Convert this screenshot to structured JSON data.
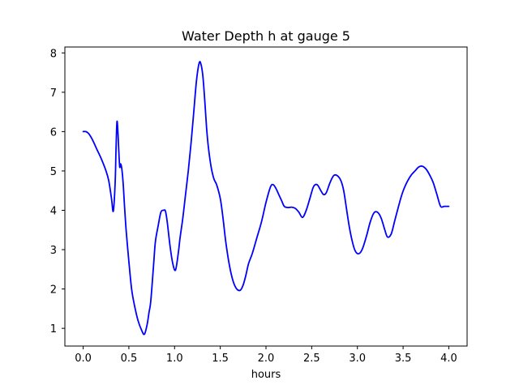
{
  "chart_data": {
    "type": "line",
    "title": "Water Depth h at gauge 5",
    "xlabel": "hours",
    "ylabel": "",
    "xlim": [
      -0.2,
      4.2
    ],
    "ylim": [
      0.55,
      8.15
    ],
    "xticks": [
      0.0,
      0.5,
      1.0,
      1.5,
      2.0,
      2.5,
      3.0,
      3.5,
      4.0
    ],
    "xtick_labels": [
      "0.0",
      "0.5",
      "1.0",
      "1.5",
      "2.0",
      "2.5",
      "3.0",
      "3.5",
      "4.0"
    ],
    "yticks": [
      1,
      2,
      3,
      4,
      5,
      6,
      7,
      8
    ],
    "ytick_labels": [
      "1",
      "2",
      "3",
      "4",
      "5",
      "6",
      "7",
      "8"
    ],
    "grid": false,
    "series": [
      {
        "color": "#0000ff",
        "x": [
          0.0,
          0.03,
          0.06,
          0.1,
          0.15,
          0.2,
          0.25,
          0.28,
          0.31,
          0.33,
          0.35,
          0.36,
          0.37,
          0.38,
          0.39,
          0.4,
          0.41,
          0.42,
          0.43,
          0.44,
          0.45,
          0.47,
          0.5,
          0.53,
          0.56,
          0.6,
          0.64,
          0.67,
          0.7,
          0.72,
          0.74,
          0.77,
          0.79,
          0.82,
          0.85,
          0.88,
          0.9,
          0.92,
          0.95,
          0.98,
          1.01,
          1.04,
          1.06,
          1.09,
          1.12,
          1.15,
          1.18,
          1.21,
          1.24,
          1.27,
          1.29,
          1.31,
          1.33,
          1.35,
          1.37,
          1.4,
          1.43,
          1.46,
          1.5,
          1.53,
          1.56,
          1.6,
          1.64,
          1.68,
          1.72,
          1.75,
          1.78,
          1.81,
          1.85,
          1.9,
          1.95,
          2.0,
          2.05,
          2.08,
          2.11,
          2.14,
          2.17,
          2.2,
          2.24,
          2.28,
          2.32,
          2.36,
          2.4,
          2.44,
          2.48,
          2.52,
          2.56,
          2.6,
          2.63,
          2.66,
          2.7,
          2.74,
          2.78,
          2.82,
          2.85,
          2.88,
          2.91,
          2.94,
          2.97,
          3.0,
          3.03,
          3.06,
          3.1,
          3.14,
          3.18,
          3.22,
          3.26,
          3.3,
          3.33,
          3.37,
          3.41,
          3.45,
          3.48,
          3.51,
          3.55,
          3.59,
          3.63,
          3.67,
          3.71,
          3.75,
          3.79,
          3.83,
          3.87,
          3.91,
          3.95,
          4.0
        ],
        "values": [
          6.0,
          6.0,
          5.95,
          5.8,
          5.55,
          5.3,
          5.0,
          4.75,
          4.3,
          3.98,
          4.7,
          5.6,
          6.25,
          6.0,
          5.5,
          5.1,
          5.18,
          5.1,
          4.9,
          4.6,
          4.2,
          3.5,
          2.7,
          2.0,
          1.6,
          1.2,
          0.95,
          0.85,
          1.1,
          1.4,
          1.7,
          2.6,
          3.2,
          3.6,
          3.95,
          4.0,
          3.98,
          3.7,
          3.1,
          2.65,
          2.48,
          2.9,
          3.3,
          3.8,
          4.4,
          5.0,
          5.7,
          6.5,
          7.3,
          7.75,
          7.7,
          7.4,
          6.8,
          6.1,
          5.6,
          5.1,
          4.8,
          4.65,
          4.3,
          3.8,
          3.2,
          2.6,
          2.2,
          2.0,
          1.97,
          2.1,
          2.35,
          2.65,
          2.9,
          3.3,
          3.7,
          4.2,
          4.6,
          4.65,
          4.55,
          4.4,
          4.25,
          4.1,
          4.07,
          4.08,
          4.05,
          3.95,
          3.82,
          4.0,
          4.3,
          4.6,
          4.65,
          4.5,
          4.4,
          4.45,
          4.7,
          4.88,
          4.88,
          4.75,
          4.5,
          4.05,
          3.6,
          3.25,
          3.0,
          2.9,
          2.92,
          3.05,
          3.35,
          3.7,
          3.93,
          3.95,
          3.8,
          3.5,
          3.32,
          3.4,
          3.75,
          4.1,
          4.35,
          4.55,
          4.75,
          4.9,
          5.0,
          5.1,
          5.12,
          5.05,
          4.9,
          4.7,
          4.4,
          4.1,
          4.1,
          4.1
        ]
      }
    ]
  }
}
